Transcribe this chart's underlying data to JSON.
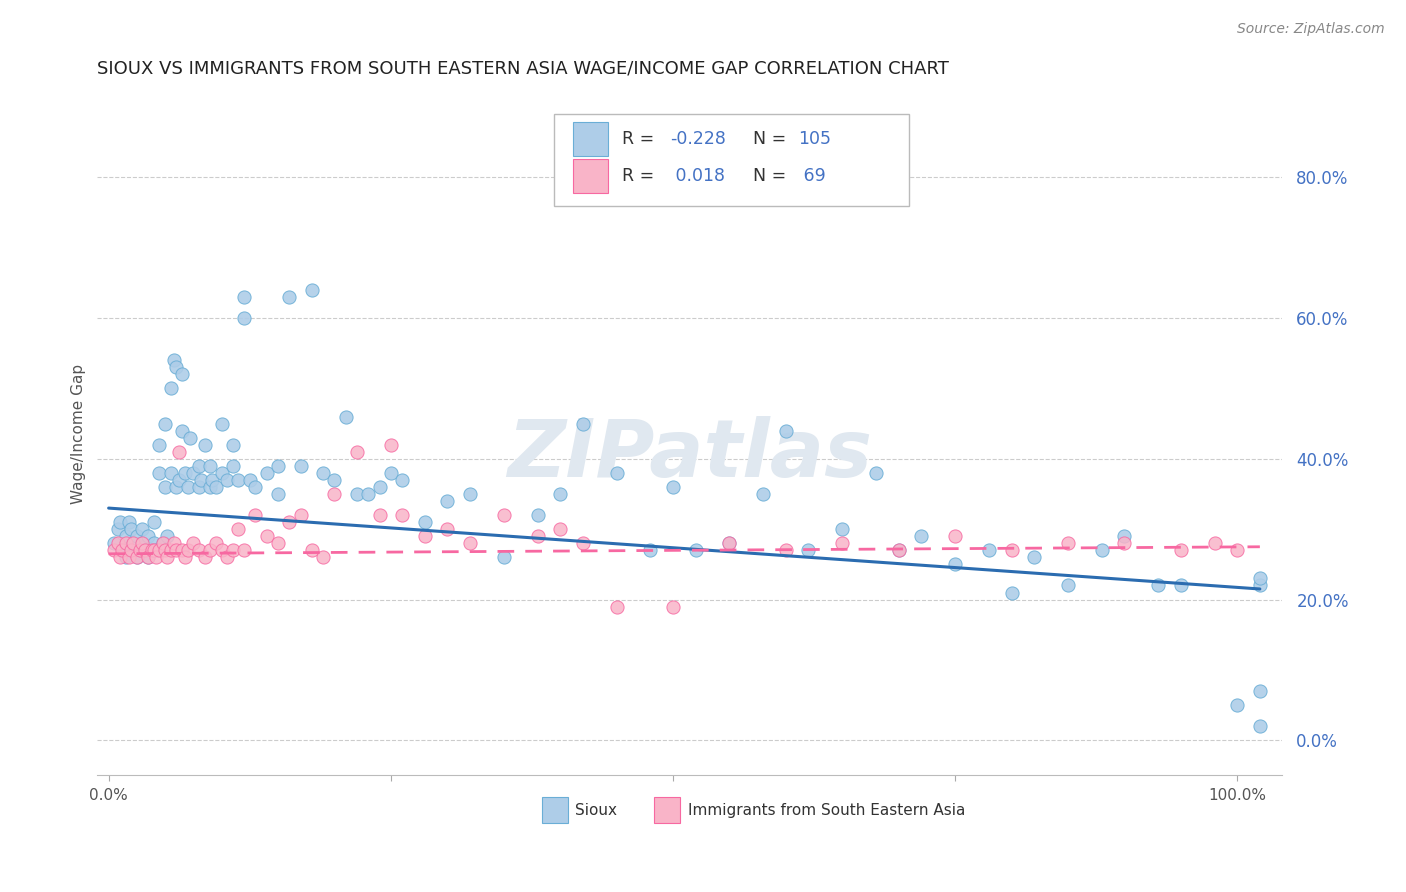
{
  "title": "SIOUX VS IMMIGRANTS FROM SOUTH EASTERN ASIA WAGE/INCOME GAP CORRELATION CHART",
  "source": "Source: ZipAtlas.com",
  "ylabel": "Wage/Income Gap",
  "blue_scatter_color": "#aecde8",
  "blue_edge_color": "#6aaed6",
  "pink_scatter_color": "#f9b4c8",
  "pink_edge_color": "#f768a1",
  "blue_line_color": "#2b6cb0",
  "pink_line_color": "#f768a1",
  "grid_color": "#cccccc",
  "right_tick_color": "#4472c4",
  "watermark_color": "#e0e8f0",
  "ytick_vals": [
    0.0,
    0.2,
    0.4,
    0.6,
    0.8
  ],
  "ytick_labels": [
    "0.0%",
    "20.0%",
    "40.0%",
    "60.0%",
    "80.0%"
  ],
  "ylim": [
    -0.05,
    0.92
  ],
  "xlim": [
    -0.01,
    1.04
  ],
  "blue_trend_x0": 0.0,
  "blue_trend_y0": 0.33,
  "blue_trend_x1": 1.02,
  "blue_trend_y1": 0.215,
  "pink_trend_x0": 0.0,
  "pink_trend_y0": 0.265,
  "pink_trend_x1": 1.02,
  "pink_trend_y1": 0.275,
  "legend_r1": "R = ",
  "legend_v1": "-0.228",
  "legend_n1_label": "N = ",
  "legend_n1_val": "105",
  "legend_r2": "R = ",
  "legend_v2": " 0.018",
  "legend_n2_label": "N = ",
  "legend_n2_val": " 69",
  "sioux_x": [
    0.005,
    0.008,
    0.01,
    0.012,
    0.015,
    0.015,
    0.018,
    0.02,
    0.02,
    0.022,
    0.025,
    0.025,
    0.028,
    0.03,
    0.03,
    0.032,
    0.035,
    0.035,
    0.038,
    0.04,
    0.04,
    0.042,
    0.045,
    0.045,
    0.048,
    0.05,
    0.05,
    0.052,
    0.055,
    0.055,
    0.058,
    0.06,
    0.06,
    0.062,
    0.065,
    0.065,
    0.068,
    0.07,
    0.072,
    0.075,
    0.08,
    0.08,
    0.082,
    0.085,
    0.09,
    0.09,
    0.092,
    0.095,
    0.1,
    0.1,
    0.105,
    0.11,
    0.11,
    0.115,
    0.12,
    0.12,
    0.125,
    0.13,
    0.14,
    0.15,
    0.15,
    0.16,
    0.17,
    0.18,
    0.19,
    0.2,
    0.21,
    0.22,
    0.23,
    0.24,
    0.25,
    0.26,
    0.28,
    0.3,
    0.32,
    0.35,
    0.38,
    0.4,
    0.42,
    0.45,
    0.48,
    0.5,
    0.52,
    0.55,
    0.58,
    0.6,
    0.62,
    0.65,
    0.68,
    0.7,
    0.72,
    0.75,
    0.78,
    0.8,
    0.82,
    0.85,
    0.88,
    0.9,
    0.93,
    0.95,
    1.0,
    1.02,
    1.02,
    1.02,
    1.02
  ],
  "sioux_y": [
    0.28,
    0.3,
    0.31,
    0.27,
    0.26,
    0.29,
    0.31,
    0.27,
    0.3,
    0.28,
    0.26,
    0.29,
    0.27,
    0.28,
    0.3,
    0.27,
    0.29,
    0.26,
    0.27,
    0.28,
    0.31,
    0.27,
    0.38,
    0.42,
    0.28,
    0.36,
    0.45,
    0.29,
    0.38,
    0.5,
    0.54,
    0.36,
    0.53,
    0.37,
    0.44,
    0.52,
    0.38,
    0.36,
    0.43,
    0.38,
    0.36,
    0.39,
    0.37,
    0.42,
    0.36,
    0.39,
    0.37,
    0.36,
    0.38,
    0.45,
    0.37,
    0.39,
    0.42,
    0.37,
    0.6,
    0.63,
    0.37,
    0.36,
    0.38,
    0.35,
    0.39,
    0.63,
    0.39,
    0.64,
    0.38,
    0.37,
    0.46,
    0.35,
    0.35,
    0.36,
    0.38,
    0.37,
    0.31,
    0.34,
    0.35,
    0.26,
    0.32,
    0.35,
    0.45,
    0.38,
    0.27,
    0.36,
    0.27,
    0.28,
    0.35,
    0.44,
    0.27,
    0.3,
    0.38,
    0.27,
    0.29,
    0.25,
    0.27,
    0.21,
    0.26,
    0.22,
    0.27,
    0.29,
    0.22,
    0.22,
    0.05,
    0.22,
    0.07,
    0.23,
    0.02
  ],
  "pink_x": [
    0.005,
    0.008,
    0.01,
    0.012,
    0.015,
    0.018,
    0.02,
    0.022,
    0.025,
    0.028,
    0.03,
    0.032,
    0.035,
    0.038,
    0.04,
    0.042,
    0.045,
    0.048,
    0.05,
    0.052,
    0.055,
    0.058,
    0.06,
    0.062,
    0.065,
    0.068,
    0.07,
    0.075,
    0.08,
    0.085,
    0.09,
    0.095,
    0.1,
    0.105,
    0.11,
    0.115,
    0.12,
    0.13,
    0.14,
    0.15,
    0.16,
    0.17,
    0.18,
    0.19,
    0.2,
    0.22,
    0.24,
    0.25,
    0.26,
    0.28,
    0.3,
    0.32,
    0.35,
    0.38,
    0.4,
    0.42,
    0.45,
    0.5,
    0.55,
    0.6,
    0.65,
    0.7,
    0.75,
    0.8,
    0.85,
    0.9,
    0.95,
    0.98,
    1.0
  ],
  "pink_y": [
    0.27,
    0.28,
    0.26,
    0.27,
    0.28,
    0.26,
    0.27,
    0.28,
    0.26,
    0.27,
    0.28,
    0.27,
    0.26,
    0.27,
    0.27,
    0.26,
    0.27,
    0.28,
    0.27,
    0.26,
    0.27,
    0.28,
    0.27,
    0.41,
    0.27,
    0.26,
    0.27,
    0.28,
    0.27,
    0.26,
    0.27,
    0.28,
    0.27,
    0.26,
    0.27,
    0.3,
    0.27,
    0.32,
    0.29,
    0.28,
    0.31,
    0.32,
    0.27,
    0.26,
    0.35,
    0.41,
    0.32,
    0.42,
    0.32,
    0.29,
    0.3,
    0.28,
    0.32,
    0.29,
    0.3,
    0.28,
    0.19,
    0.19,
    0.28,
    0.27,
    0.28,
    0.27,
    0.29,
    0.27,
    0.28,
    0.28,
    0.27,
    0.28,
    0.27
  ]
}
